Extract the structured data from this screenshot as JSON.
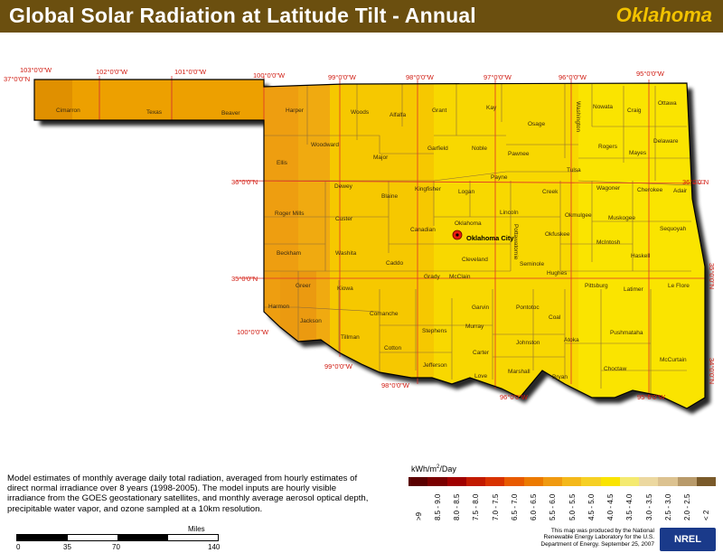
{
  "header": {
    "title": "Global Solar Radiation at Latitude Tilt - Annual",
    "state": "Oklahoma"
  },
  "map": {
    "graticule_labels": {
      "top": [
        "103°0'0\"W",
        "102°0'0\"W",
        "101°0'0\"W",
        "100°0'0\"W",
        "99°0'0\"W",
        "98°0'0\"W",
        "97°0'0\"W",
        "96°0'0\"W",
        "95°0'0\"W"
      ],
      "left_top": "37°0'0\"N",
      "left_mid": "36°0'0\"N",
      "left_low": "35°0'0\"N",
      "right_mid": "36°0'0\"N",
      "right_low": "35°0'0\"N",
      "right_bottom": "34°0'0\"N",
      "lower": [
        "100°0'0\"W",
        "99°0'0\"W",
        "98°0'0\"W",
        "96°0'0\"W",
        "95°0'0\"W"
      ]
    },
    "counties": [
      "Cimarron",
      "Texas",
      "Beaver",
      "Harper",
      "Woods",
      "Alfalfa",
      "Grant",
      "Kay",
      "Osage",
      "Washington",
      "Nowata",
      "Craig",
      "Ottawa",
      "Woodward",
      "Major",
      "Garfield",
      "Noble",
      "Pawnee",
      "Rogers",
      "Mayes",
      "Delaware",
      "Ellis",
      "Tulsa",
      "Payne",
      "Dewey",
      "Blaine",
      "Kingfisher",
      "Logan",
      "Creek",
      "Wagoner",
      "Cherokee",
      "Adair",
      "Roger Mills",
      "Custer",
      "Canadian",
      "Oklahoma",
      "Lincoln",
      "Okmulgee",
      "Muskogee",
      "Sequoyah",
      "Okfuskee",
      "McIntosh",
      "Beckham",
      "Washita",
      "Caddo",
      "Cleveland",
      "Seminole",
      "Haskell",
      "Hughes",
      "Grady",
      "McClain",
      "Greer",
      "Kiowa",
      "Le Flore",
      "Latimer",
      "Pittsburg",
      "Harmon",
      "Jackson",
      "Comanche",
      "Garvin",
      "Pontotoc",
      "Coal",
      "Stephens",
      "Murray",
      "Tillman",
      "Cotton",
      "Pushmataha",
      "Johnston",
      "Atoka",
      "Carter",
      "Jefferson",
      "Marshall",
      "Choctaw",
      "McCurtain",
      "Love",
      "Bryan",
      "Pottawatomie"
    ],
    "city": "Oklahoma City"
  },
  "legend": {
    "title": "kWh/m²/Day",
    "classes": [
      ">9",
      "8.5 - 9.0",
      "8.0 - 8.5",
      "7.5 - 8.0",
      "7.0 - 7.5",
      "6.5 - 7.0",
      "6.0 - 6.5",
      "5.5 - 6.0",
      "5.0 - 5.5",
      "4.5 - 5.0",
      "4.0 - 4.5",
      "3.5 - 4.0",
      "3.0 - 3.5",
      "2.5 - 3.0",
      "2.0 - 2.5",
      "< 2"
    ],
    "colors": [
      "#5a0000",
      "#7a0000",
      "#a00000",
      "#c21a00",
      "#d83200",
      "#e85a00",
      "#ec7a00",
      "#f09a10",
      "#f4b81a",
      "#f6d024",
      "#fae400",
      "#f4ea70",
      "#ecd8a0",
      "#dcc290",
      "#b89a6a",
      "#7a5a2a"
    ]
  },
  "description": "Model estimates of monthly average daily total radiation, averaged from hourly estimates of direct normal irradiance over 8 years (1998-2005). The model inputs are hourly visible irradiance from the GOES geostationary satellites, and monthly average aerosol optical depth, precipitable water vapor, and ozone sampled at a 10km resolution.",
  "scale": {
    "unit": "Miles",
    "ticks": [
      "0",
      "35",
      "70",
      "140"
    ]
  },
  "credit": "This map was produced by the National Renewable Energy Laboratory for the U.S. Department of Energy. September 25, 2007",
  "logo": "NREL"
}
